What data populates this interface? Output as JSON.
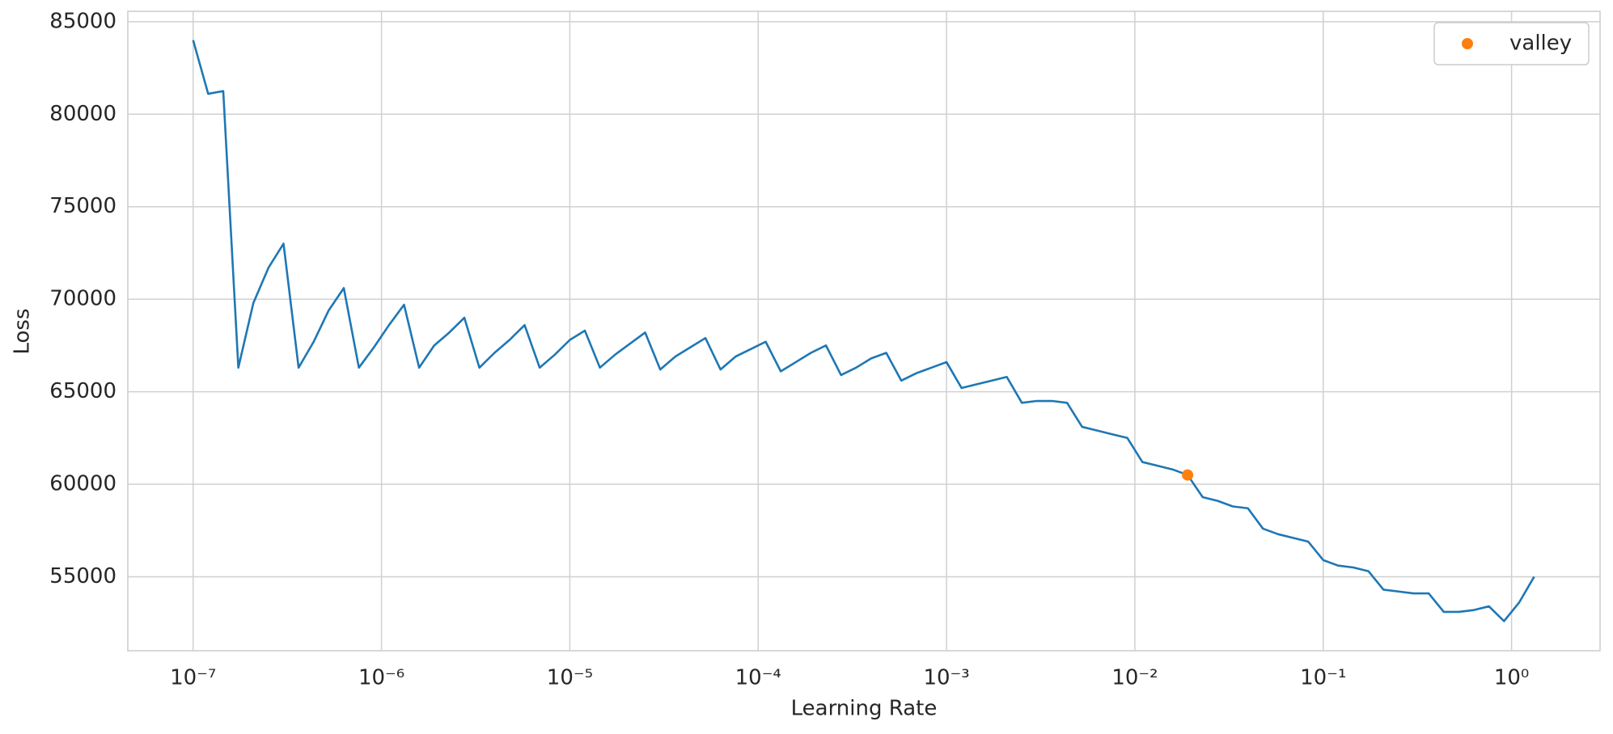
{
  "chart_data": {
    "type": "line",
    "xlabel": "Learning Rate",
    "ylabel": "Loss",
    "xscale": "log",
    "grid": true,
    "legend_loc": "upper right",
    "xlim": [
      4.5e-08,
      2.95
    ],
    "ylim": [
      51000,
      85560
    ],
    "xticks": [
      {
        "value": 1e-07,
        "label": "10⁻⁷"
      },
      {
        "value": 1e-06,
        "label": "10⁻⁶"
      },
      {
        "value": 1e-05,
        "label": "10⁻⁵"
      },
      {
        "value": 0.0001,
        "label": "10⁻⁴"
      },
      {
        "value": 0.001,
        "label": "10⁻³"
      },
      {
        "value": 0.01,
        "label": "10⁻²"
      },
      {
        "value": 0.1,
        "label": "10⁻¹"
      },
      {
        "value": 1,
        "label": "10⁰"
      }
    ],
    "yticks": [
      55000,
      60000,
      65000,
      70000,
      75000,
      80000,
      85000
    ],
    "series": [
      {
        "kind": "line",
        "color": "#1f77b4",
        "x": [
          1e-07,
          1.202e-07,
          1.445e-07,
          1.738e-07,
          2.089e-07,
          2.512e-07,
          3.02e-07,
          3.631e-07,
          4.365e-07,
          5.248e-07,
          6.31e-07,
          7.586e-07,
          9.12e-07,
          1.096e-06,
          1.318e-06,
          1.585e-06,
          1.905e-06,
          2.291e-06,
          2.754e-06,
          3.311e-06,
          3.981e-06,
          4.786e-06,
          5.754e-06,
          6.918e-06,
          8.318e-06,
          1e-05,
          1.202e-05,
          1.445e-05,
          1.738e-05,
          2.089e-05,
          2.512e-05,
          3.02e-05,
          3.631e-05,
          4.365e-05,
          5.248e-05,
          6.31e-05,
          7.586e-05,
          9.12e-05,
          0.0001096,
          0.0001318,
          0.0001585,
          0.0001905,
          0.0002291,
          0.0002754,
          0.0003311,
          0.0003981,
          0.0004786,
          0.0005754,
          0.0006918,
          0.0008318,
          0.001,
          0.001202,
          0.001445,
          0.001738,
          0.002089,
          0.002512,
          0.00302,
          0.003631,
          0.004365,
          0.005248,
          0.00631,
          0.007586,
          0.00912,
          0.01096,
          0.01318,
          0.01585,
          0.01905,
          0.02291,
          0.02754,
          0.03311,
          0.03981,
          0.04786,
          0.05754,
          0.06918,
          0.08318,
          0.1,
          0.1202,
          0.1445,
          0.1738,
          0.2089,
          0.2512,
          0.302,
          0.3631,
          0.4365,
          0.5248,
          0.631,
          0.7586,
          0.912,
          1.096,
          1.318
        ],
        "values": [
          84000,
          81100,
          81250,
          66300,
          69800,
          71700,
          73000,
          66300,
          67700,
          69400,
          70600,
          66300,
          67400,
          68600,
          69700,
          66300,
          67500,
          68200,
          69000,
          66300,
          67100,
          67800,
          68600,
          66300,
          67000,
          67800,
          68300,
          66300,
          67000,
          67600,
          68200,
          66200,
          66900,
          67400,
          67900,
          66200,
          66900,
          67300,
          67700,
          66100,
          66600,
          67100,
          67500,
          65900,
          66300,
          66800,
          67100,
          65600,
          66000,
          66300,
          66600,
          65200,
          65400,
          65600,
          65800,
          64400,
          64500,
          64500,
          64400,
          63100,
          62900,
          62700,
          62500,
          61200,
          61000,
          60800,
          60500,
          59300,
          59100,
          58800,
          58700,
          57600,
          57300,
          57100,
          56900,
          55900,
          55600,
          55500,
          55300,
          54300,
          54200,
          54100,
          54100,
          53100,
          53100,
          53200,
          53400,
          52600,
          53600,
          55000
        ]
      },
      {
        "kind": "scatter",
        "name": "valley",
        "color": "#ff7f0e",
        "x": [
          0.01905
        ],
        "values": [
          60500
        ]
      }
    ]
  }
}
